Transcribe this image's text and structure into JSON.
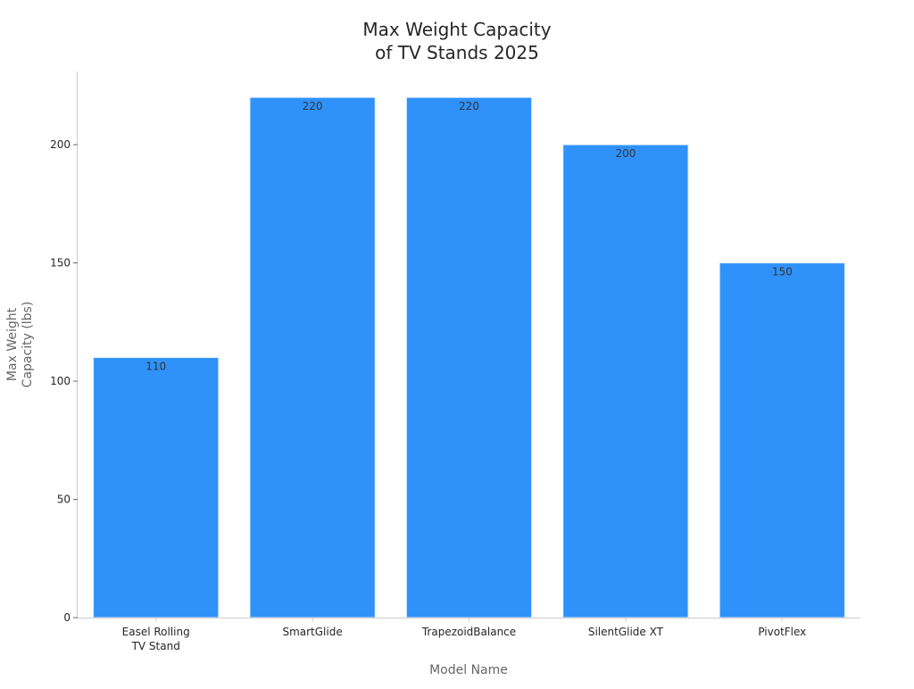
{
  "chart_data": {
    "type": "bar",
    "title_lines": [
      "Max Weight Capacity",
      "of TV Stands 2025"
    ],
    "categories": [
      [
        "Easel Rolling",
        "TV Stand"
      ],
      [
        "SmartGlide"
      ],
      [
        "TrapezoidBalance"
      ],
      [
        "SilentGlide XT"
      ],
      [
        "PivotFlex"
      ]
    ],
    "values": [
      110,
      220,
      220,
      200,
      150
    ],
    "value_labels": [
      "110",
      "220",
      "220",
      "200",
      "150"
    ],
    "xlabel": "Model Name",
    "ylabel_lines": [
      "Max Weight",
      "Capacity (lbs)"
    ],
    "ylim": [
      0,
      231
    ],
    "yticks": [
      0,
      50,
      100,
      150,
      200
    ],
    "ytick_labels": [
      "0",
      "50",
      "100",
      "150",
      "200"
    ],
    "bar_color": "#2f92fa",
    "grid": false,
    "legend": false
  }
}
